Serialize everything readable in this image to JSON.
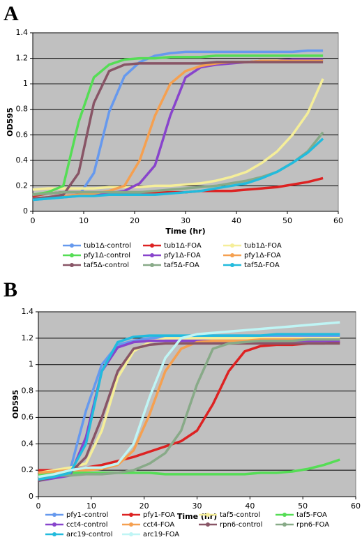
{
  "chart_data": [
    {
      "type": "line",
      "label": "A",
      "xlabel": "Time (hr)",
      "ylabel": "OD595",
      "xlim": [
        0,
        60
      ],
      "xticks": [
        0,
        10,
        20,
        30,
        40,
        50,
        60
      ],
      "ylim": [
        0,
        1.4
      ],
      "yticks": [
        0,
        0.2,
        0.4,
        0.6,
        0.8,
        1,
        1.2,
        1.4
      ],
      "grid": true,
      "background": "#c0c0c0",
      "x": [
        0,
        3,
        6,
        9,
        12,
        15,
        18,
        21,
        24,
        27,
        30,
        33,
        36,
        39,
        42,
        45,
        48,
        51,
        54,
        57
      ],
      "series": [
        {
          "name": "tub1Δ-control",
          "color": "#6699ee",
          "values": [
            0.09,
            0.1,
            0.11,
            0.12,
            0.3,
            0.78,
            1.06,
            1.17,
            1.22,
            1.24,
            1.25,
            1.25,
            1.25,
            1.25,
            1.25,
            1.25,
            1.25,
            1.25,
            1.26,
            1.26
          ]
        },
        {
          "name": "tub1Δ-FOA",
          "color": "#dd2222",
          "values": [
            0.12,
            0.14,
            0.15,
            0.15,
            0.15,
            0.15,
            0.15,
            0.15,
            0.15,
            0.15,
            0.15,
            0.16,
            0.16,
            0.16,
            0.17,
            0.18,
            0.19,
            0.21,
            0.23,
            0.26
          ]
        },
        {
          "name": "tub1Δ-FOA",
          "color": "#f5ee99",
          "values": [
            0.17,
            0.18,
            0.18,
            0.18,
            0.18,
            0.19,
            0.19,
            0.19,
            0.2,
            0.2,
            0.21,
            0.22,
            0.24,
            0.27,
            0.31,
            0.38,
            0.47,
            0.6,
            0.77,
            1.04
          ]
        },
        {
          "name": "pfy1Δ-control",
          "color": "#55dd55",
          "values": [
            0.13,
            0.15,
            0.2,
            0.7,
            1.05,
            1.15,
            1.19,
            1.2,
            1.2,
            1.21,
            1.21,
            1.21,
            1.22,
            1.22,
            1.22,
            1.22,
            1.22,
            1.22,
            1.22,
            1.22
          ]
        },
        {
          "name": "pfy1Δ-FOA",
          "color": "#8844cc",
          "values": [
            0.1,
            0.11,
            0.12,
            0.13,
            0.13,
            0.14,
            0.16,
            0.22,
            0.36,
            0.75,
            1.05,
            1.13,
            1.15,
            1.16,
            1.17,
            1.18,
            1.18,
            1.19,
            1.19,
            1.19
          ]
        },
        {
          "name": "pfy1Δ-FOA",
          "color": "#f5a050",
          "values": [
            0.1,
            0.11,
            0.12,
            0.13,
            0.14,
            0.16,
            0.2,
            0.4,
            0.75,
            1.0,
            1.1,
            1.14,
            1.16,
            1.17,
            1.17,
            1.18,
            1.18,
            1.18,
            1.18,
            1.18
          ]
        },
        {
          "name": "taf5Δ-control",
          "color": "#885566",
          "values": [
            0.1,
            0.11,
            0.13,
            0.3,
            0.85,
            1.1,
            1.15,
            1.16,
            1.16,
            1.16,
            1.16,
            1.16,
            1.17,
            1.17,
            1.17,
            1.17,
            1.17,
            1.17,
            1.17,
            1.17
          ]
        },
        {
          "name": "taf5Δ-FOA",
          "color": "#88aa88",
          "values": [
            0.13,
            0.14,
            0.15,
            0.15,
            0.15,
            0.15,
            0.15,
            0.15,
            0.16,
            0.17,
            0.18,
            0.19,
            0.2,
            0.22,
            0.24,
            0.27,
            0.31,
            0.38,
            0.47,
            0.62
          ]
        },
        {
          "name": "taf5Δ-FOA",
          "color": "#22bbdd",
          "values": [
            0.09,
            0.1,
            0.11,
            0.12,
            0.12,
            0.13,
            0.13,
            0.13,
            0.13,
            0.14,
            0.15,
            0.16,
            0.18,
            0.2,
            0.22,
            0.26,
            0.31,
            0.38,
            0.46,
            0.57
          ]
        }
      ]
    },
    {
      "type": "line",
      "label": "B",
      "xlabel": "Time (hr)",
      "ylabel": "OD595",
      "xlim": [
        0,
        60
      ],
      "xticks": [
        0,
        10,
        20,
        30,
        40,
        50,
        60
      ],
      "ylim": [
        0,
        1.4
      ],
      "yticks": [
        0,
        0.2,
        0.4,
        0.6,
        0.8,
        1,
        1.2,
        1.4
      ],
      "grid": true,
      "background": "#c0c0c0",
      "x": [
        0,
        3,
        6,
        9,
        12,
        15,
        18,
        21,
        24,
        27,
        30,
        33,
        36,
        39,
        42,
        45,
        48,
        51,
        54,
        57
      ],
      "series": [
        {
          "name": "pfy1-control",
          "color": "#6699ee",
          "values": [
            0.13,
            0.15,
            0.2,
            0.65,
            1.0,
            1.15,
            1.18,
            1.2,
            1.21,
            1.21,
            1.22,
            1.22,
            1.22,
            1.22,
            1.22,
            1.22,
            1.22,
            1.22,
            1.22,
            1.22
          ]
        },
        {
          "name": "pfy1-FOA",
          "color": "#dd2222",
          "values": [
            0.2,
            0.2,
            0.21,
            0.22,
            0.24,
            0.27,
            0.3,
            0.34,
            0.38,
            0.42,
            0.5,
            0.7,
            0.95,
            1.1,
            1.14,
            1.15,
            1.15,
            1.16,
            1.16,
            1.17
          ]
        },
        {
          "name": "taf5-control",
          "color": "#f5ee99",
          "values": [
            0.18,
            0.2,
            0.22,
            0.25,
            0.5,
            0.9,
            1.1,
            1.17,
            1.2,
            1.2,
            1.2,
            1.2,
            1.2,
            1.2,
            1.2,
            1.2,
            1.2,
            1.2,
            1.2,
            1.2
          ]
        },
        {
          "name": "taf5-FOA",
          "color": "#55dd55",
          "values": [
            0.16,
            0.18,
            0.18,
            0.18,
            0.18,
            0.18,
            0.18,
            0.18,
            0.17,
            0.17,
            0.17,
            0.17,
            0.17,
            0.17,
            0.18,
            0.18,
            0.19,
            0.21,
            0.24,
            0.28
          ]
        },
        {
          "name": "cct4-control",
          "color": "#8844cc",
          "values": [
            0.12,
            0.14,
            0.16,
            0.45,
            0.95,
            1.13,
            1.17,
            1.18,
            1.18,
            1.18,
            1.18,
            1.18,
            1.18,
            1.18,
            1.18,
            1.18,
            1.18,
            1.18,
            1.18,
            1.18
          ]
        },
        {
          "name": "cct4-FOA",
          "color": "#f5a050",
          "values": [
            0.18,
            0.19,
            0.2,
            0.2,
            0.21,
            0.24,
            0.35,
            0.62,
            0.95,
            1.12,
            1.17,
            1.18,
            1.18,
            1.18,
            1.19,
            1.19,
            1.19,
            1.19,
            1.19,
            1.19
          ]
        },
        {
          "name": "rpn6-control",
          "color": "#885566",
          "values": [
            0.12,
            0.15,
            0.18,
            0.3,
            0.6,
            0.95,
            1.12,
            1.15,
            1.16,
            1.16,
            1.16,
            1.16,
            1.16,
            1.16,
            1.16,
            1.16,
            1.16,
            1.16,
            1.16,
            1.16
          ]
        },
        {
          "name": "rpn6-FOA",
          "color": "#88aa88",
          "values": [
            0.15,
            0.16,
            0.16,
            0.17,
            0.17,
            0.18,
            0.2,
            0.25,
            0.33,
            0.5,
            0.85,
            1.12,
            1.16,
            1.17,
            1.18,
            1.18,
            1.18,
            1.19,
            1.19,
            1.19
          ]
        },
        {
          "name": "arc19-control",
          "color": "#22bbdd",
          "values": [
            0.13,
            0.15,
            0.18,
            0.4,
            0.95,
            1.17,
            1.21,
            1.22,
            1.22,
            1.22,
            1.22,
            1.22,
            1.22,
            1.22,
            1.22,
            1.23,
            1.23,
            1.23,
            1.23,
            1.23
          ]
        },
        {
          "name": "arc19-FOA",
          "color": "#bff5f5",
          "values": [
            0.15,
            0.17,
            0.2,
            0.22,
            0.22,
            0.25,
            0.4,
            0.75,
            1.05,
            1.2,
            1.23,
            1.24,
            1.25,
            1.26,
            1.27,
            1.28,
            1.29,
            1.3,
            1.31,
            1.32
          ]
        }
      ]
    }
  ]
}
